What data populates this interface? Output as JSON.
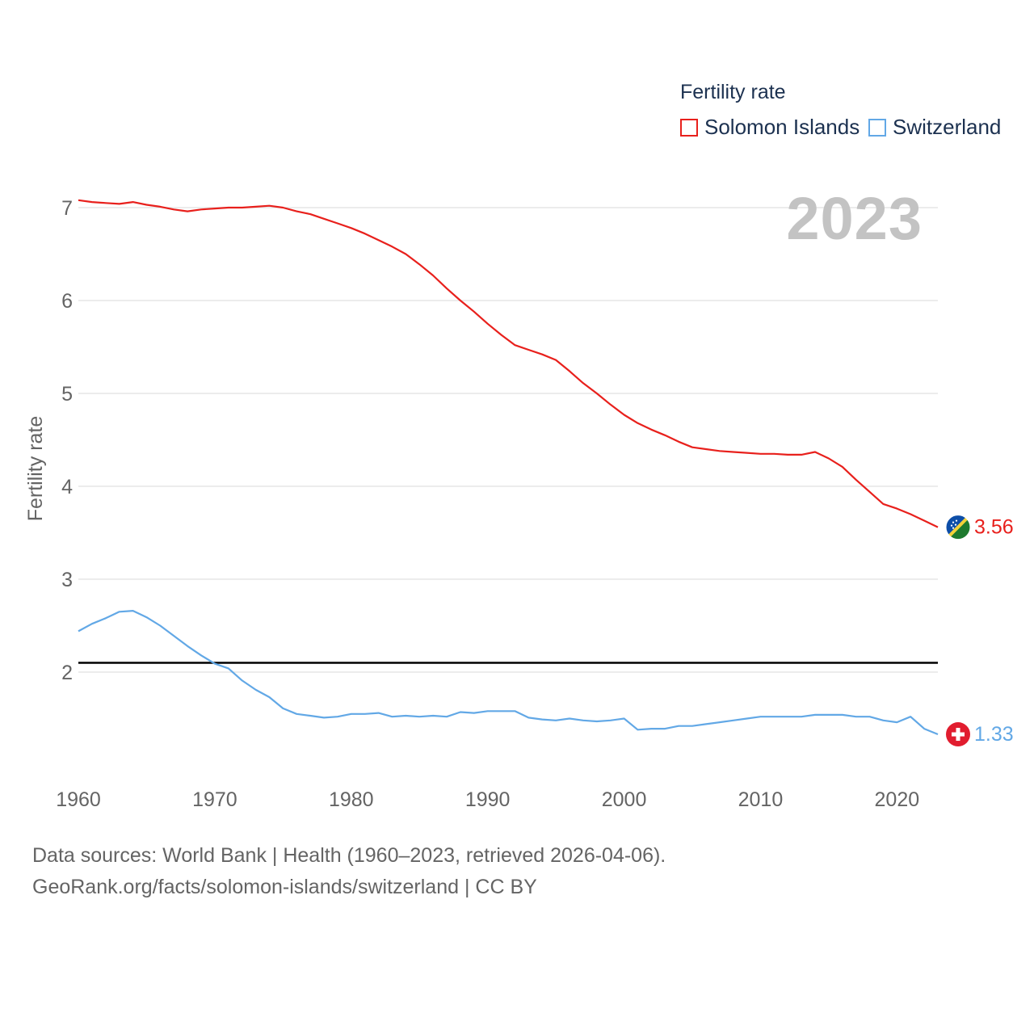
{
  "legend": {
    "title": "Fertility rate",
    "items": [
      {
        "label": "Solomon Islands",
        "color": "#e8201c"
      },
      {
        "label": "Switzerland",
        "color": "#62a8e6"
      }
    ]
  },
  "overlay_year": "2023",
  "footer": {
    "line1": "Data sources: World Bank | Health (1960–2023, retrieved 2026-04-06).",
    "line2": "GeoRank.org/facts/solomon-islands/switzerland | CC BY"
  },
  "chart_data": {
    "type": "line",
    "title": "",
    "xlabel": "",
    "ylabel": "Fertility rate",
    "xlim": [
      1960,
      2023
    ],
    "ylim": [
      1,
      7.2
    ],
    "x_ticks": [
      1960,
      1970,
      1980,
      1990,
      2000,
      2010,
      2020
    ],
    "y_ticks": [
      2,
      3,
      4,
      5,
      6,
      7
    ],
    "grid": true,
    "reference_line": {
      "y": 2.1,
      "color": "#000000"
    },
    "x": [
      1960,
      1961,
      1962,
      1963,
      1964,
      1965,
      1966,
      1967,
      1968,
      1969,
      1970,
      1971,
      1972,
      1973,
      1974,
      1975,
      1976,
      1977,
      1978,
      1979,
      1980,
      1981,
      1982,
      1983,
      1984,
      1985,
      1986,
      1987,
      1988,
      1989,
      1990,
      1991,
      1992,
      1993,
      1994,
      1995,
      1996,
      1997,
      1998,
      1999,
      2000,
      2001,
      2002,
      2003,
      2004,
      2005,
      2006,
      2007,
      2008,
      2009,
      2010,
      2011,
      2012,
      2013,
      2014,
      2015,
      2016,
      2017,
      2018,
      2019,
      2020,
      2021,
      2022,
      2023
    ],
    "series": [
      {
        "name": "Solomon Islands",
        "color": "#e8201c",
        "end_label": "3.56",
        "values": [
          7.08,
          7.06,
          7.05,
          7.04,
          7.06,
          7.03,
          7.01,
          6.98,
          6.96,
          6.98,
          6.99,
          7.0,
          7.0,
          7.01,
          7.02,
          7.0,
          6.96,
          6.93,
          6.88,
          6.83,
          6.78,
          6.72,
          6.65,
          6.58,
          6.5,
          6.39,
          6.27,
          6.13,
          6.0,
          5.88,
          5.75,
          5.63,
          5.52,
          5.47,
          5.42,
          5.36,
          5.24,
          5.11,
          5.0,
          4.88,
          4.77,
          4.68,
          4.61,
          4.55,
          4.48,
          4.42,
          4.4,
          4.38,
          4.37,
          4.36,
          4.35,
          4.35,
          4.34,
          4.34,
          4.37,
          4.3,
          4.21,
          4.07,
          3.94,
          3.81,
          3.76,
          3.7,
          3.63,
          3.56
        ]
      },
      {
        "name": "Switzerland",
        "color": "#62a8e6",
        "end_label": "1.33",
        "values": [
          2.44,
          2.52,
          2.58,
          2.65,
          2.66,
          2.59,
          2.5,
          2.39,
          2.28,
          2.18,
          2.09,
          2.04,
          1.91,
          1.81,
          1.73,
          1.61,
          1.55,
          1.53,
          1.51,
          1.52,
          1.55,
          1.55,
          1.56,
          1.52,
          1.53,
          1.52,
          1.53,
          1.52,
          1.57,
          1.56,
          1.58,
          1.58,
          1.58,
          1.51,
          1.49,
          1.48,
          1.5,
          1.48,
          1.47,
          1.48,
          1.5,
          1.38,
          1.39,
          1.39,
          1.42,
          1.42,
          1.44,
          1.46,
          1.48,
          1.5,
          1.52,
          1.52,
          1.52,
          1.52,
          1.54,
          1.54,
          1.54,
          1.52,
          1.52,
          1.48,
          1.46,
          1.52,
          1.39,
          1.33
        ]
      }
    ]
  }
}
